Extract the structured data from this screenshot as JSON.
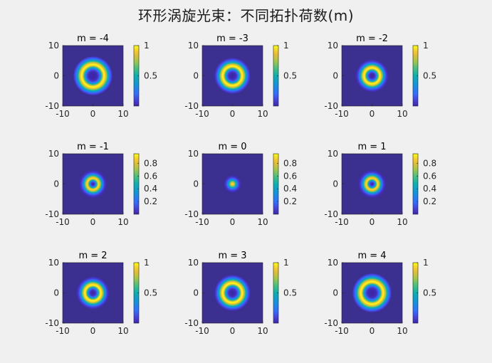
{
  "figure": {
    "title": "环形涡旋光束：不同拓扑荷数(m)",
    "background": "#f0f0f0",
    "plot_background": "#3b2f8f"
  },
  "chart_data": [
    {
      "type": "heatmap",
      "title": "m = -4",
      "m": -4,
      "xlim": [
        -10,
        10
      ],
      "ylim": [
        -10,
        10
      ],
      "xticks": [
        -10,
        0,
        10
      ],
      "yticks": [
        -10,
        0,
        10
      ],
      "colorbar": {
        "ticks": [
          0.5,
          1
        ],
        "labels": [
          "0.5",
          "1"
        ],
        "range": [
          0,
          1
        ]
      }
    },
    {
      "type": "heatmap",
      "title": "m = -3",
      "m": -3,
      "xlim": [
        -10,
        10
      ],
      "ylim": [
        -10,
        10
      ],
      "xticks": [
        -10,
        0,
        10
      ],
      "yticks": [
        -10,
        0,
        10
      ],
      "colorbar": {
        "ticks": [
          0.5,
          1
        ],
        "labels": [
          "0.5",
          "1"
        ],
        "range": [
          0,
          1
        ]
      }
    },
    {
      "type": "heatmap",
      "title": "m = -2",
      "m": -2,
      "xlim": [
        -10,
        10
      ],
      "ylim": [
        -10,
        10
      ],
      "xticks": [
        -10,
        0,
        10
      ],
      "yticks": [
        -10,
        0,
        10
      ],
      "colorbar": {
        "ticks": [
          0.5,
          1
        ],
        "labels": [
          "0.5",
          "1"
        ],
        "range": [
          0,
          1
        ]
      }
    },
    {
      "type": "heatmap",
      "title": "m = -1",
      "m": -1,
      "xlim": [
        -10,
        10
      ],
      "ylim": [
        -10,
        10
      ],
      "xticks": [
        -10,
        0,
        10
      ],
      "yticks": [
        -10,
        0,
        10
      ],
      "colorbar": {
        "ticks": [
          0.2,
          0.4,
          0.6,
          0.8
        ],
        "labels": [
          "0.2",
          "0.4",
          "0.6",
          "0.8"
        ],
        "range": [
          0,
          0.95
        ]
      }
    },
    {
      "type": "heatmap",
      "title": "m = 0",
      "m": 0,
      "xlim": [
        -10,
        10
      ],
      "ylim": [
        -10,
        10
      ],
      "xticks": [
        -10,
        0,
        10
      ],
      "yticks": [
        -10,
        0,
        10
      ],
      "colorbar": {
        "ticks": [
          0.2,
          0.4,
          0.6,
          0.8
        ],
        "labels": [
          "0.2",
          "0.4",
          "0.6",
          "0.8"
        ],
        "range": [
          0,
          0.95
        ]
      }
    },
    {
      "type": "heatmap",
      "title": "m = 1",
      "m": 1,
      "xlim": [
        -10,
        10
      ],
      "ylim": [
        -10,
        10
      ],
      "xticks": [
        -10,
        0,
        10
      ],
      "yticks": [
        -10,
        0,
        10
      ],
      "colorbar": {
        "ticks": [
          0.2,
          0.4,
          0.6,
          0.8
        ],
        "labels": [
          "0.2",
          "0.4",
          "0.6",
          "0.8"
        ],
        "range": [
          0,
          0.95
        ]
      }
    },
    {
      "type": "heatmap",
      "title": "m = 2",
      "m": 2,
      "xlim": [
        -10,
        10
      ],
      "ylim": [
        -10,
        10
      ],
      "xticks": [
        -10,
        0,
        10
      ],
      "yticks": [
        -10,
        0,
        10
      ],
      "colorbar": {
        "ticks": [
          0.5,
          1
        ],
        "labels": [
          "0.5",
          "1"
        ],
        "range": [
          0,
          1
        ]
      }
    },
    {
      "type": "heatmap",
      "title": "m = 3",
      "m": 3,
      "xlim": [
        -10,
        10
      ],
      "ylim": [
        -10,
        10
      ],
      "xticks": [
        -10,
        0,
        10
      ],
      "yticks": [
        -10,
        0,
        10
      ],
      "colorbar": {
        "ticks": [
          0.5,
          1
        ],
        "labels": [
          "0.5",
          "1"
        ],
        "range": [
          0,
          1
        ]
      }
    },
    {
      "type": "heatmap",
      "title": "m = 4",
      "m": 4,
      "xlim": [
        -10,
        10
      ],
      "ylim": [
        -10,
        10
      ],
      "xticks": [
        -10,
        0,
        10
      ],
      "yticks": [
        -10,
        0,
        10
      ],
      "colorbar": {
        "ticks": [
          0.5,
          1
        ],
        "labels": [
          "0.5",
          "1"
        ],
        "range": [
          0,
          1
        ]
      }
    }
  ]
}
